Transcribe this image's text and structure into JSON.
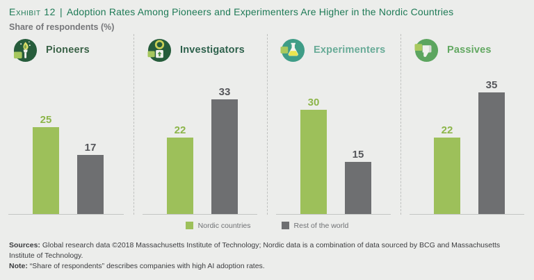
{
  "header": {
    "exhibit_label": "Exhibit 12",
    "divider": "|",
    "title": "Adoption Rates Among Pioneers and Experimenters Are Higher in the Nordic Countries",
    "subtitle": "Share of respondents (%)"
  },
  "theme": {
    "background": "#ECEDEB",
    "title_green": "#1E7A56",
    "subtitle_gray": "#76777A",
    "nordic_green": "#9DC05A",
    "rest_gray": "#6E6F71"
  },
  "chart_data": {
    "type": "bar",
    "title": "Adoption Rates Among Pioneers and Experimenters Are Higher in the Nordic Countries",
    "ylabel": "Share of respondents (%)",
    "categories": [
      "Pioneers",
      "Investigators",
      "Experimenters",
      "Passives"
    ],
    "series": [
      {
        "name": "Nordic countries",
        "color": "#9DC05A",
        "values": [
          25,
          22,
          30,
          22
        ]
      },
      {
        "name": "Rest of the world",
        "color": "#6E6F71",
        "values": [
          17,
          33,
          15,
          35
        ]
      }
    ],
    "ylim": [
      0,
      40
    ],
    "value_labels": true,
    "grid": false,
    "legend_position": "bottom"
  },
  "panels": [
    {
      "label": "Pioneers",
      "icon": "torch-icon",
      "label_color": "#3A6247"
    },
    {
      "label": "Investigators",
      "icon": "magnifier-icon",
      "label_color": "#2E614C"
    },
    {
      "label": "Experimenters",
      "icon": "flask-icon",
      "label_color": "#68AB97"
    },
    {
      "label": "Passives",
      "icon": "thumbs-down-icon",
      "label_color": "#62A861"
    }
  ],
  "legend": {
    "items": [
      {
        "label": "Nordic countries",
        "color": "#9DC05A"
      },
      {
        "label": "Rest of the world",
        "color": "#6E6F71"
      }
    ]
  },
  "footer": {
    "sources_label": "Sources:",
    "sources_text": "Global research data ©2018 Massachusetts Institute of Technology; Nordic data is a combination of data sourced by BCG and Massachusetts Institute of Technology.",
    "note_label": "Note:",
    "note_text": "“Share of respondents” describes companies with high AI adoption rates."
  }
}
